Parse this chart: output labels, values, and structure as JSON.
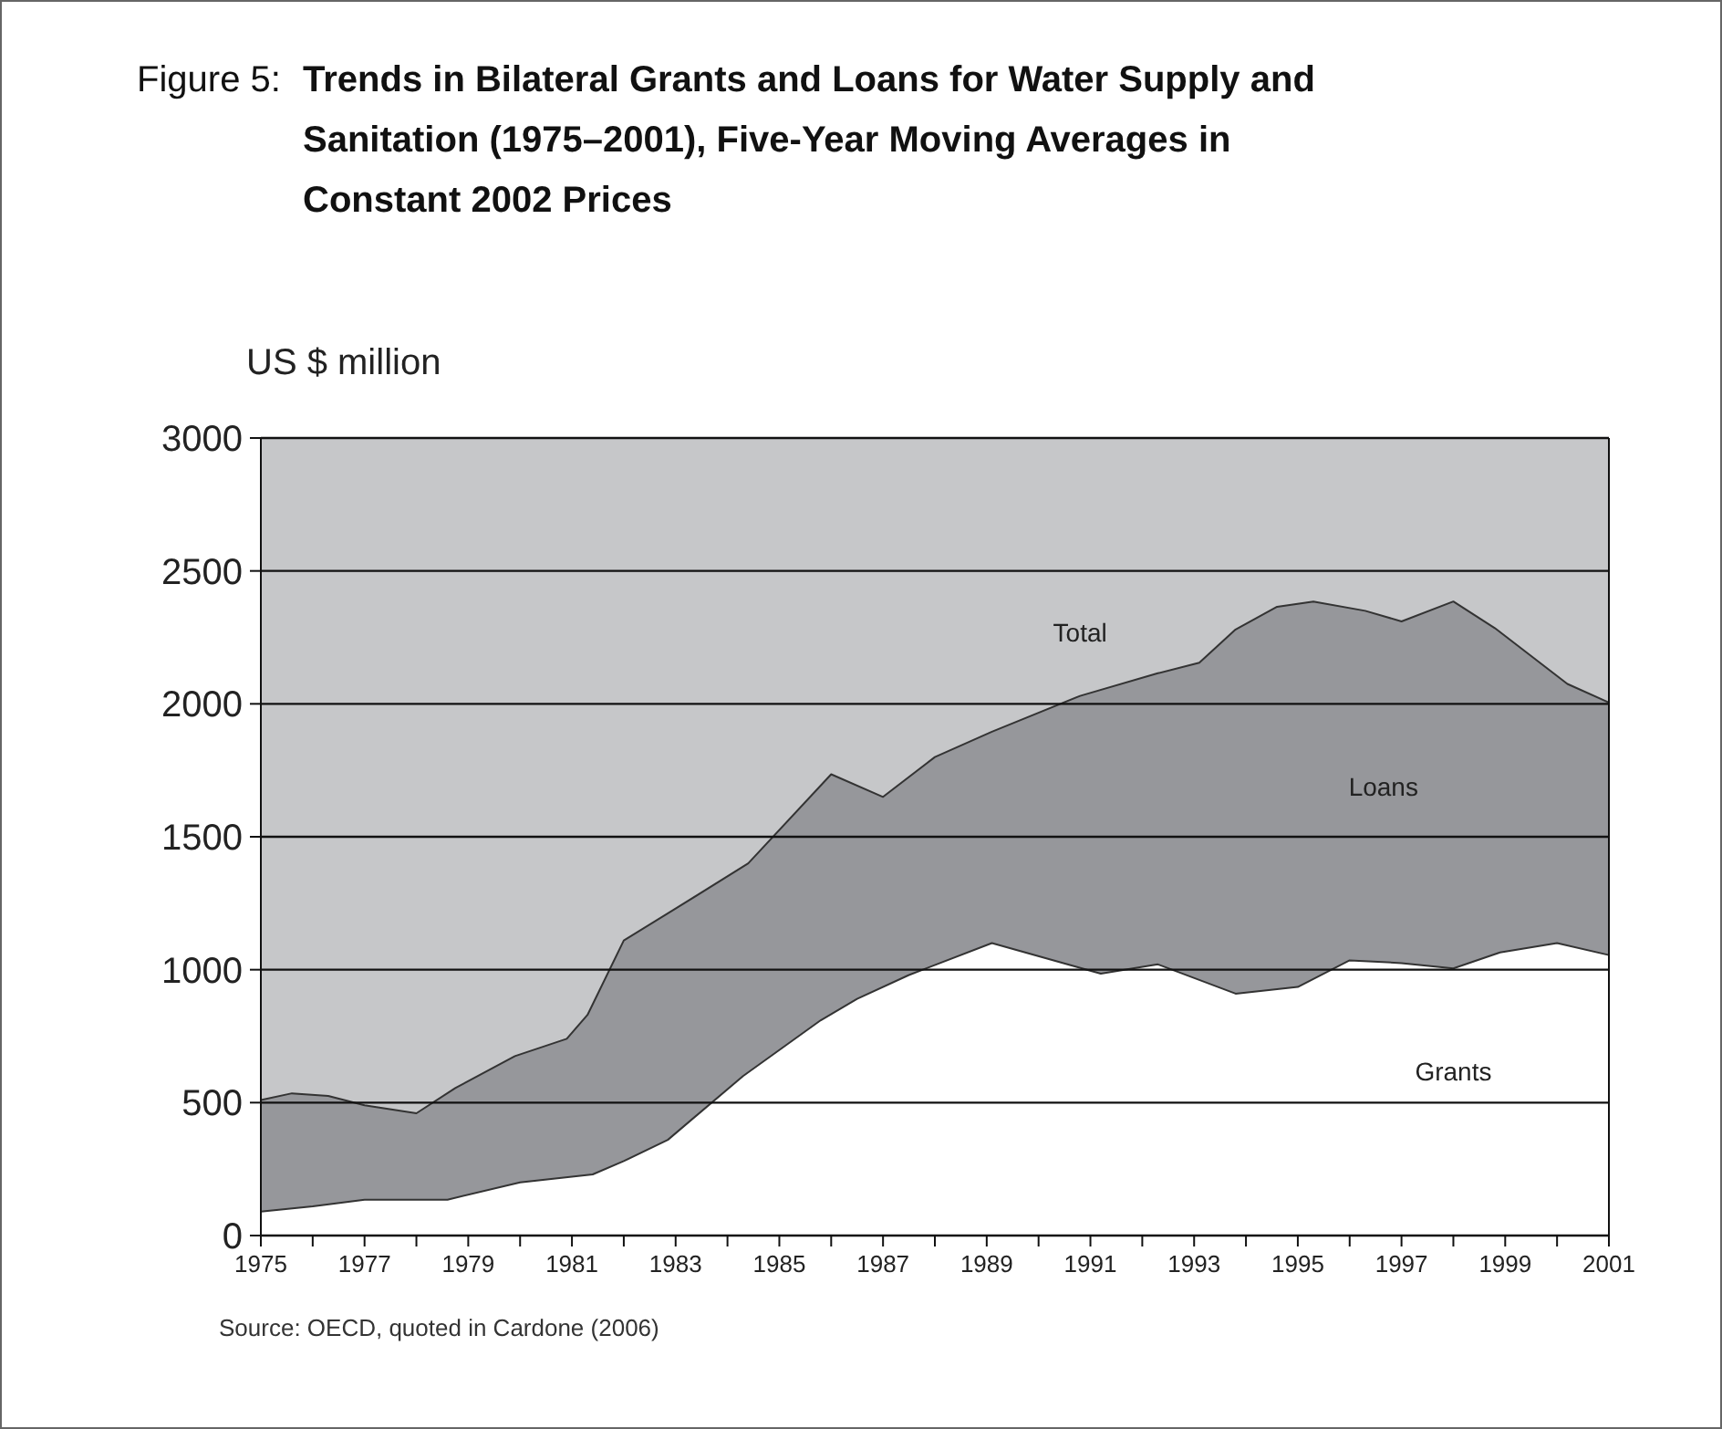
{
  "chart_data": {
    "type": "area",
    "title": "Figure 5: Trends in Bilateral Grants and Loans for Water Supply and Sanitation (1975–2001), Five-Year Moving Averages in Constant 2002 Prices",
    "ylabel": "US $ million",
    "series": [
      {
        "name": "Total",
        "color": "#96979b",
        "x": [
          1975,
          1975.6,
          1976.3,
          1977,
          1978,
          1978.75,
          1979.9,
          1980.9,
          1981.3,
          1982,
          1983,
          1984.4,
          1986,
          1987,
          1988,
          1989.1,
          1990.8,
          1992.3,
          1993.1,
          1993.8,
          1994.6,
          1995.3,
          1996.3,
          1997,
          1998,
          1998.8,
          2000.2,
          2001
        ],
        "values": [
          510,
          535,
          525,
          490,
          460,
          555,
          675,
          740,
          830,
          1110,
          1230,
          1400,
          1735,
          1650,
          1800,
          1895,
          2030,
          2115,
          2155,
          2280,
          2365,
          2385,
          2350,
          2310,
          2385,
          2285,
          2075,
          2005
        ]
      },
      {
        "name": "Grants",
        "color": "#ffffff",
        "x": [
          1975,
          1976,
          1977,
          1978.6,
          1980,
          1981.4,
          1982,
          1982.85,
          1984.3,
          1985.8,
          1986.5,
          1987.5,
          1989.1,
          1991.2,
          1992.3,
          1993.8,
          1995,
          1996,
          1997,
          1998,
          1998.9,
          2000,
          2001
        ],
        "values": [
          90,
          110,
          135,
          135,
          200,
          230,
          280,
          360,
          600,
          810,
          890,
          980,
          1100,
          985,
          1020,
          910,
          935,
          1035,
          1025,
          1005,
          1065,
          1100,
          1055
        ]
      }
    ],
    "xlim": [
      1975,
      2001
    ],
    "xticks": [
      1975,
      {
        "value": 1976,
        "label": null
      },
      1977,
      {
        "value": 1978,
        "label": null
      },
      1979,
      {
        "value": 1980,
        "label": null
      },
      1981,
      {
        "value": 1982,
        "label": null
      },
      1983,
      {
        "value": 1984,
        "label": null
      },
      1985,
      {
        "value": 1986,
        "label": null
      },
      1987,
      {
        "value": 1988,
        "label": null
      },
      1989,
      {
        "value": 1990,
        "label": null
      },
      1991,
      {
        "value": 1992,
        "label": null
      },
      1993,
      {
        "value": 1994,
        "label": null
      },
      1995,
      {
        "value": 1996,
        "label": null
      },
      1997,
      {
        "value": 1998,
        "label": null
      },
      1999,
      {
        "value": 2000,
        "label": null
      },
      2001
    ],
    "ylim": [
      0,
      3000
    ],
    "yticks": [
      0,
      500,
      1000,
      1500,
      2000,
      2500,
      3000
    ],
    "grid": "y",
    "annotations": [
      "Loans",
      {
        "text": "Source: OECD, quoted in Cardone (2006)"
      }
    ]
  }
}
